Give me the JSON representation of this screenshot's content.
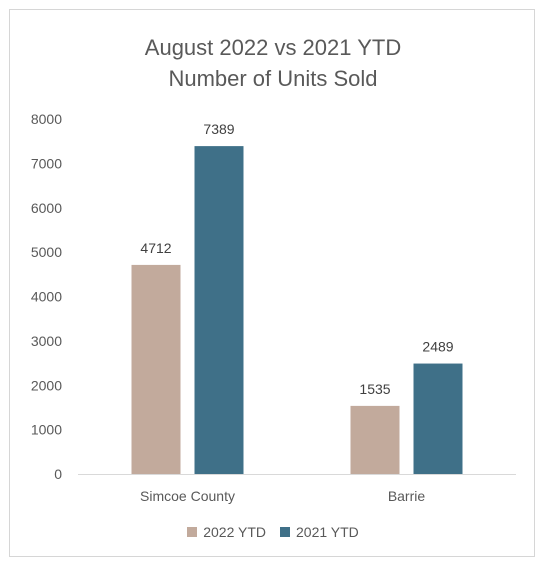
{
  "chart_data": {
    "type": "bar",
    "title_lines": [
      "August 2022 vs 2021 YTD",
      "Number of Units Sold"
    ],
    "categories": [
      "Simcoe County",
      "Barrie"
    ],
    "series": [
      {
        "name": "2022 YTD",
        "color": "#c2aa9c",
        "values": [
          4712,
          1535
        ]
      },
      {
        "name": "2021 YTD",
        "color": "#3f7088",
        "values": [
          7389,
          2489
        ]
      }
    ],
    "ylim": [
      0,
      8000
    ],
    "yticks": [
      0,
      1000,
      2000,
      3000,
      4000,
      5000,
      6000,
      7000,
      8000
    ],
    "grid": false,
    "legend_position": "bottom",
    "axis_color": "#d9d9d9"
  }
}
